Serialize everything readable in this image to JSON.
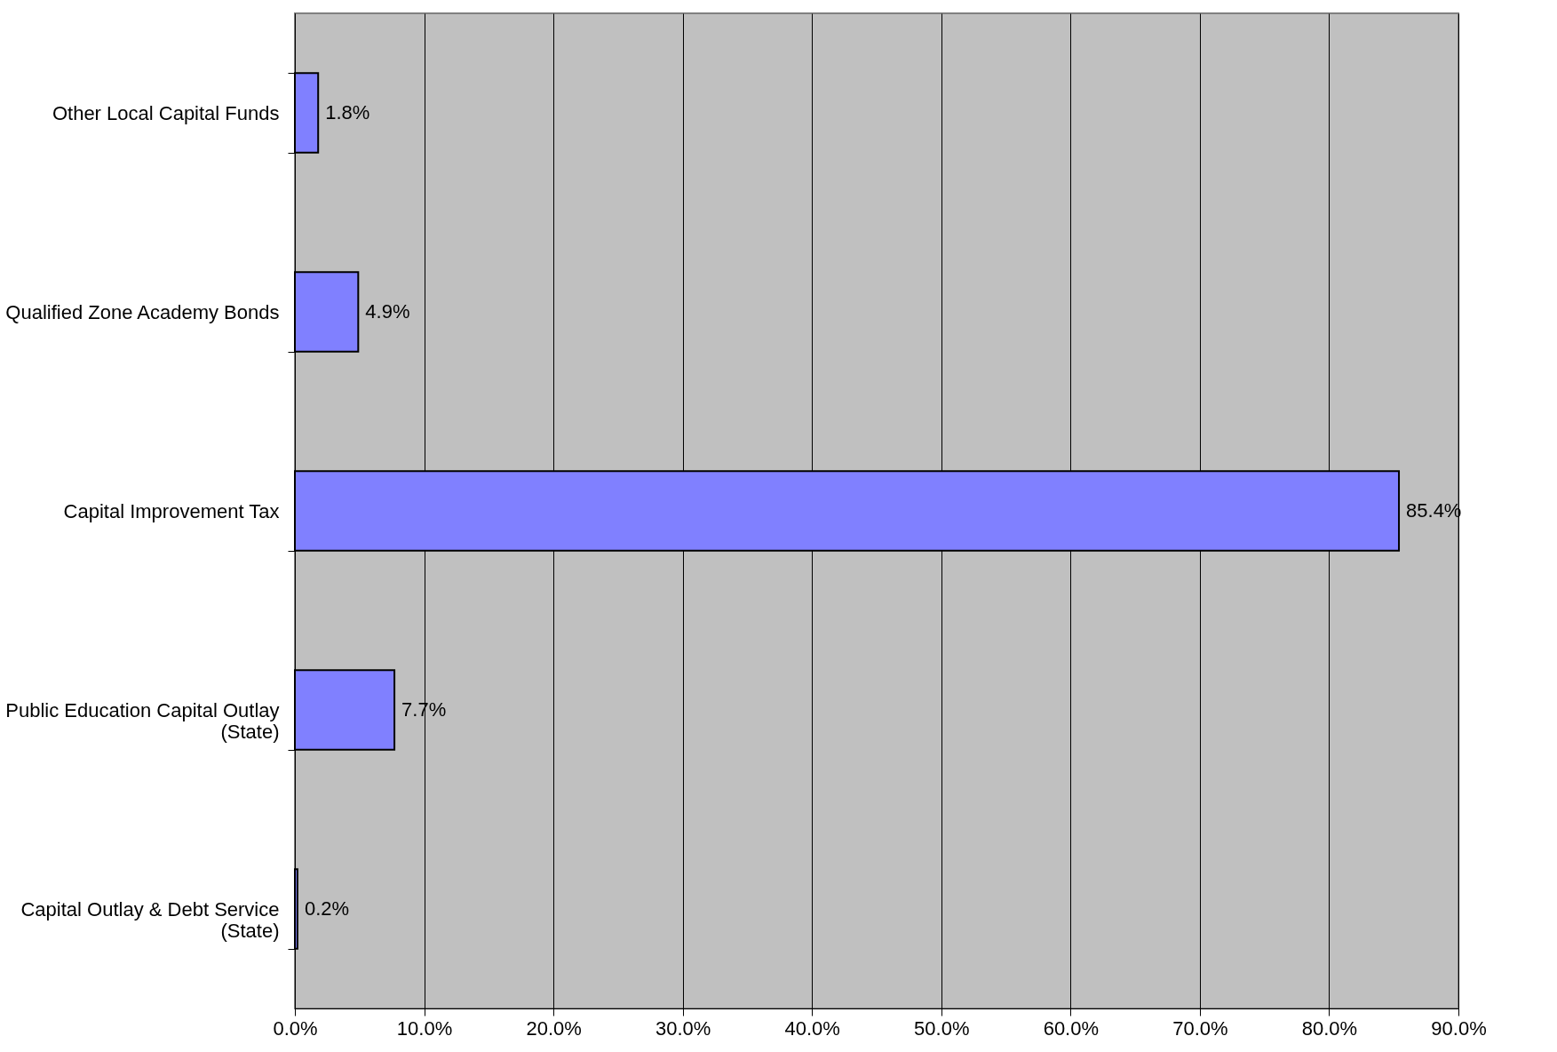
{
  "chart_data": {
    "type": "bar",
    "orientation": "horizontal",
    "categories": [
      "Other Local Capital Funds",
      "Qualified Zone Academy Bonds",
      "Capital Improvement Tax",
      "Public Education Capital Outlay (State)",
      "Capital Outlay & Debt Service (State)"
    ],
    "values": [
      1.8,
      4.9,
      85.4,
      7.7,
      0.2
    ],
    "value_labels": [
      "1.8%",
      "4.9%",
      "85.4%",
      "7.7%",
      "0.2%"
    ],
    "color": "#8080ff",
    "xlim": [
      0,
      90
    ],
    "xticks": [
      {
        "value": 0,
        "label": "0.0%"
      },
      {
        "value": 10,
        "label": "10.0%"
      },
      {
        "value": 20,
        "label": "20.0%"
      },
      {
        "value": 30,
        "label": "30.0%"
      },
      {
        "value": 40,
        "label": "40.0%"
      },
      {
        "value": 50,
        "label": "50.0%"
      },
      {
        "value": 60,
        "label": "60.0%"
      },
      {
        "value": 70,
        "label": "70.0%"
      },
      {
        "value": 80,
        "label": "80.0%"
      },
      {
        "value": 90,
        "label": "90.0%"
      }
    ],
    "grid": "x"
  }
}
